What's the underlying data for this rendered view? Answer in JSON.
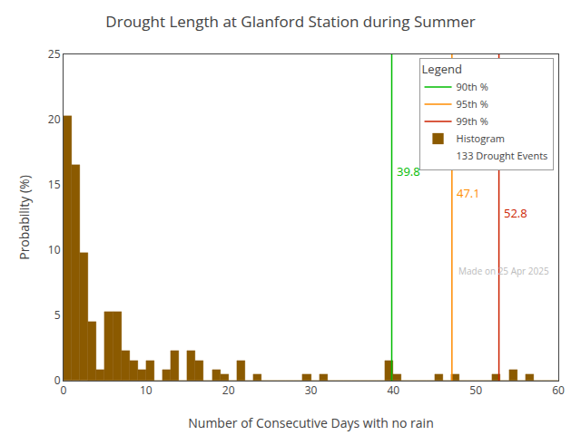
{
  "chart_data": {
    "type": "histogram",
    "title": "Drought Length at Glanford Station during Summer",
    "xlabel": "Number of Consecutive Days with no rain",
    "ylabel": "Probability (%)",
    "name": "Histogram",
    "color": "#8B5A00",
    "bins": [
      0,
      1,
      2,
      3,
      4,
      5,
      6,
      7,
      8,
      9,
      10,
      11,
      12,
      13,
      14,
      15,
      16,
      17,
      18,
      19,
      20,
      21,
      22,
      23,
      24,
      25,
      26,
      27,
      28,
      29,
      30,
      31,
      32,
      33,
      34,
      35,
      36,
      37,
      38,
      39,
      40,
      41,
      42,
      43,
      44,
      45,
      46,
      47,
      48,
      49,
      50,
      51,
      52,
      53,
      54,
      55,
      56,
      57,
      58,
      59,
      60
    ],
    "values": [
      20.3,
      16.5,
      9.8,
      4.5,
      0.8,
      5.3,
      5.3,
      2.3,
      1.5,
      0.8,
      1.5,
      0.0,
      0.8,
      2.3,
      0.0,
      2.3,
      1.5,
      0.0,
      0.8,
      0.5,
      0.0,
      1.5,
      0.0,
      0.5,
      0.0,
      0.0,
      0.0,
      0.0,
      0.0,
      0.5,
      0.0,
      0.5,
      0.0,
      0.0,
      0.0,
      0.0,
      0.0,
      0.0,
      0.0,
      1.5,
      0.5,
      0.0,
      0.0,
      0.0,
      0.0,
      0.5,
      0.0,
      0.5,
      0.0,
      0.0,
      0.0,
      0.0,
      0.5,
      0.0,
      0.8,
      0.0,
      0.5,
      0.0,
      0.0,
      0.0
    ],
    "series": [
      {
        "name": "90th %",
        "type": "vline",
        "color": "#00BB00",
        "x": 39.8
      },
      {
        "name": "95th %",
        "type": "vline",
        "color": "#FF8C00",
        "x": 47.1
      },
      {
        "name": "99th %",
        "type": "vline",
        "color": "#CC2200",
        "x": 52.8
      }
    ],
    "annotations": [
      {
        "text": "39.8",
        "x": 39.8,
        "y": 15.3,
        "color": "#00BB00"
      },
      {
        "text": "47.1",
        "x": 47.1,
        "y": 13.6,
        "color": "#FF8C00"
      },
      {
        "text": "52.8",
        "x": 52.8,
        "y": 12.1,
        "color": "#CC2200"
      }
    ],
    "legend_title": "Legend",
    "legend_note": "133 Drought Events",
    "watermark": "Made on 25 Apr 2025",
    "legend": "upper right",
    "grid": false,
    "xlim": [
      0,
      60
    ],
    "ylim": [
      0,
      25
    ],
    "xticks": [
      0,
      10,
      20,
      30,
      40,
      50,
      60
    ],
    "yticks": [
      0,
      5,
      10,
      15,
      20,
      25
    ]
  }
}
